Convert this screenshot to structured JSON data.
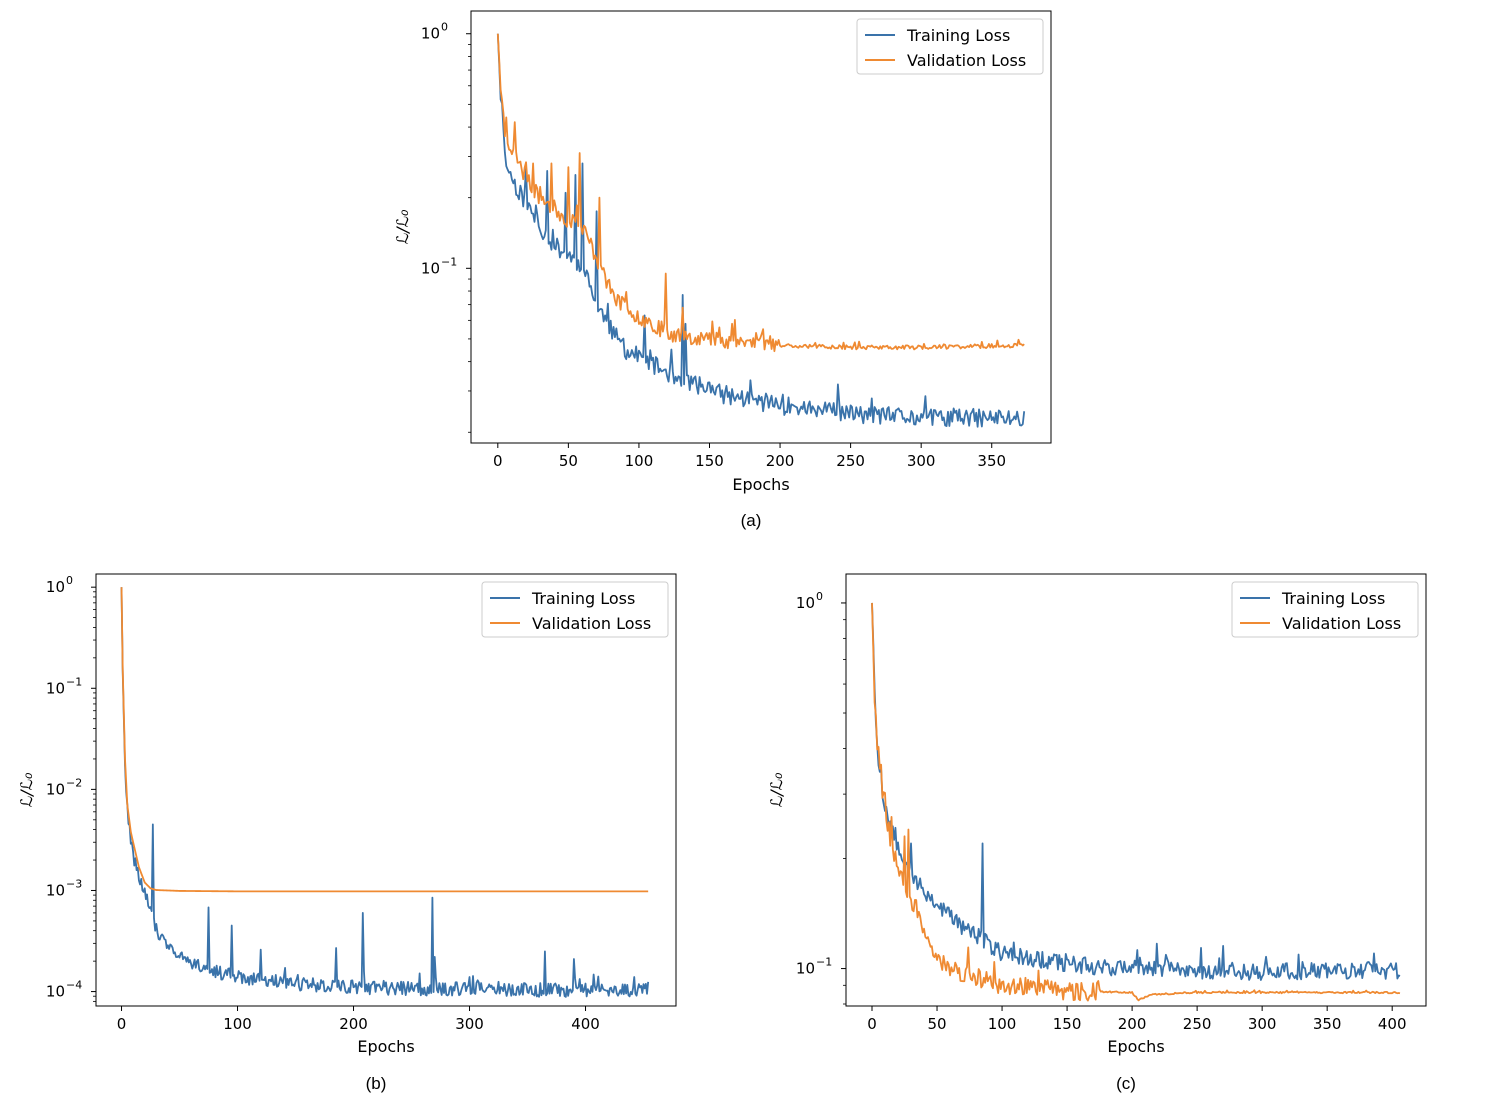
{
  "colors": {
    "training": "#3a73aa",
    "validation": "#ef8a32",
    "frame": "#000000",
    "legend_border": "#cccccc"
  },
  "chart_data": [
    {
      "id": "a",
      "type": "line",
      "caption": "(a)",
      "xlabel": "Epochs",
      "ylabel": "ℒ/ℒ₀",
      "yscale": "log",
      "xlim": [
        -19,
        392
      ],
      "ylim": [
        0.018,
        1.25
      ],
      "xticks": [
        0,
        50,
        100,
        150,
        200,
        250,
        300,
        350
      ],
      "xtick_labels": [
        "0",
        "50",
        "100",
        "150",
        "200",
        "250",
        "300",
        "350"
      ],
      "yticks": [
        {
          "value": 1,
          "exp": "0"
        },
        {
          "value": 0.1,
          "exp": "−1"
        }
      ],
      "legend_position": "upper-right",
      "series": [
        {
          "name": "Training Loss",
          "color_key": "training",
          "epochs": 374,
          "keypoints": [
            [
              0,
              1.0
            ],
            [
              2,
              0.55
            ],
            [
              5,
              0.3
            ],
            [
              10,
              0.24
            ],
            [
              20,
              0.19
            ],
            [
              30,
              0.15
            ],
            [
              40,
              0.125
            ],
            [
              50,
              0.115
            ],
            [
              60,
              0.1
            ],
            [
              65,
              0.085
            ],
            [
              70,
              0.07
            ],
            [
              80,
              0.055
            ],
            [
              90,
              0.045
            ],
            [
              100,
              0.042
            ],
            [
              120,
              0.036
            ],
            [
              140,
              0.032
            ],
            [
              160,
              0.029
            ],
            [
              200,
              0.026
            ],
            [
              250,
              0.024
            ],
            [
              300,
              0.023
            ],
            [
              374,
              0.023
            ]
          ],
          "noise": 0.09,
          "spikes": [
            [
              20,
              0.27
            ],
            [
              35,
              0.26
            ],
            [
              48,
              0.21
            ],
            [
              55,
              0.25
            ],
            [
              60,
              0.28
            ],
            [
              70,
              0.175
            ],
            [
              104,
              0.063
            ],
            [
              131,
              0.077
            ],
            [
              133,
              0.058
            ]
          ],
          "seed": 11
        },
        {
          "name": "Validation Loss",
          "color_key": "validation",
          "epochs": 374,
          "keypoints": [
            [
              0,
              1.0
            ],
            [
              2,
              0.6
            ],
            [
              5,
              0.38
            ],
            [
              10,
              0.32
            ],
            [
              20,
              0.24
            ],
            [
              30,
              0.2
            ],
            [
              40,
              0.18
            ],
            [
              50,
              0.16
            ],
            [
              60,
              0.15
            ],
            [
              65,
              0.13
            ],
            [
              70,
              0.11
            ],
            [
              80,
              0.08
            ],
            [
              90,
              0.068
            ],
            [
              100,
              0.062
            ],
            [
              110,
              0.058
            ],
            [
              120,
              0.053
            ],
            [
              150,
              0.05
            ],
            [
              200,
              0.047
            ],
            [
              250,
              0.046
            ],
            [
              300,
              0.046
            ],
            [
              374,
              0.047
            ]
          ],
          "noise": 0.08,
          "spikes": [
            [
              6,
              0.44
            ],
            [
              12,
              0.42
            ],
            [
              25,
              0.28
            ],
            [
              38,
              0.28
            ],
            [
              50,
              0.27
            ],
            [
              58,
              0.31
            ],
            [
              72,
              0.2
            ],
            [
              119,
              0.095
            ],
            [
              131,
              0.068
            ],
            [
              166,
              0.058
            ],
            [
              188,
              0.055
            ]
          ],
          "smooth_after": 200,
          "seed": 23
        }
      ]
    },
    {
      "id": "b",
      "type": "line",
      "caption": "(b)",
      "xlabel": "Epochs",
      "ylabel": "ℒ/ℒ₀",
      "yscale": "log",
      "xlim": [
        -22,
        478
      ],
      "ylim": [
        7.2e-05,
        1.35
      ],
      "xticks": [
        0,
        100,
        200,
        300,
        400
      ],
      "xtick_labels": [
        "0",
        "100",
        "200",
        "300",
        "400"
      ],
      "yticks": [
        {
          "value": 1,
          "exp": "0"
        },
        {
          "value": 0.1,
          "exp": "−1"
        },
        {
          "value": 0.01,
          "exp": "−2"
        },
        {
          "value": 0.001,
          "exp": "−3"
        },
        {
          "value": 0.0001,
          "exp": "−4"
        }
      ],
      "legend_position": "upper-right",
      "series": [
        {
          "name": "Training Loss",
          "color_key": "training",
          "epochs": 455,
          "keypoints": [
            [
              0,
              1.0
            ],
            [
              1,
              0.15
            ],
            [
              3,
              0.02
            ],
            [
              5,
              0.006
            ],
            [
              8,
              0.003
            ],
            [
              10,
              0.0022
            ],
            [
              15,
              0.0013
            ],
            [
              20,
              0.001
            ],
            [
              25,
              0.0007
            ],
            [
              30,
              0.0004
            ],
            [
              40,
              0.00026
            ],
            [
              60,
              0.0002
            ],
            [
              80,
              0.00016
            ],
            [
              100,
              0.00014
            ],
            [
              150,
              0.00012
            ],
            [
              200,
              0.00011
            ],
            [
              300,
              0.000105
            ],
            [
              455,
              0.000102
            ]
          ],
          "noise": 0.16,
          "spikes": [
            [
              27,
              0.0045
            ],
            [
              29,
              0.0004
            ],
            [
              75,
              0.00068
            ],
            [
              95,
              0.00045
            ],
            [
              120,
              0.00026
            ],
            [
              185,
              0.00027
            ],
            [
              208,
              0.0006
            ],
            [
              268,
              0.00085
            ],
            [
              270,
              0.00022
            ],
            [
              365,
              0.00025
            ],
            [
              390,
              0.00021
            ]
          ],
          "seed": 31
        },
        {
          "name": "Validation Loss",
          "color_key": "validation",
          "epochs": 455,
          "keypoints": [
            [
              0,
              1.0
            ],
            [
              1,
              0.16
            ],
            [
              3,
              0.02
            ],
            [
              5,
              0.007
            ],
            [
              8,
              0.0038
            ],
            [
              10,
              0.003
            ],
            [
              15,
              0.0017
            ],
            [
              20,
              0.0012
            ],
            [
              25,
              0.00105
            ],
            [
              30,
              0.00101
            ],
            [
              50,
              0.00099
            ],
            [
              100,
              0.00098
            ],
            [
              455,
              0.00098
            ]
          ],
          "noise": 0.0,
          "spikes": [],
          "seed": 41
        }
      ]
    },
    {
      "id": "c",
      "type": "line",
      "caption": "(c)",
      "xlabel": "Epochs",
      "ylabel": "ℒ/ℒ₀",
      "yscale": "log",
      "xlim": [
        -20,
        426
      ],
      "ylim": [
        0.079,
        1.2
      ],
      "xticks": [
        0,
        50,
        100,
        150,
        200,
        250,
        300,
        350,
        400
      ],
      "xtick_labels": [
        "0",
        "50",
        "100",
        "150",
        "200",
        "250",
        "300",
        "350",
        "400"
      ],
      "yticks": [
        {
          "value": 1,
          "exp": "0"
        },
        {
          "value": 0.1,
          "exp": "−1"
        }
      ],
      "legend_position": "upper-right",
      "series": [
        {
          "name": "Training Loss",
          "color_key": "training",
          "epochs": 407,
          "keypoints": [
            [
              0,
              1.0
            ],
            [
              2,
              0.6
            ],
            [
              4,
              0.4
            ],
            [
              8,
              0.3
            ],
            [
              15,
              0.24
            ],
            [
              25,
              0.2
            ],
            [
              35,
              0.17
            ],
            [
              50,
              0.15
            ],
            [
              60,
              0.14
            ],
            [
              70,
              0.13
            ],
            [
              85,
              0.12
            ],
            [
              100,
              0.11
            ],
            [
              150,
              0.103
            ],
            [
              200,
              0.1
            ],
            [
              300,
              0.098
            ],
            [
              407,
              0.099
            ]
          ],
          "noise": 0.055,
          "spikes": [
            [
              85,
              0.22
            ],
            [
              30,
              0.22
            ]
          ],
          "seed": 53
        },
        {
          "name": "Validation Loss",
          "color_key": "validation",
          "epochs": 407,
          "keypoints": [
            [
              0,
              1.0
            ],
            [
              2,
              0.55
            ],
            [
              4,
              0.42
            ],
            [
              8,
              0.3
            ],
            [
              15,
              0.22
            ],
            [
              25,
              0.17
            ],
            [
              35,
              0.14
            ],
            [
              45,
              0.11
            ],
            [
              60,
              0.1
            ],
            [
              80,
              0.095
            ],
            [
              100,
              0.09
            ],
            [
              150,
              0.087
            ],
            [
              200,
              0.086
            ],
            [
              205,
              0.082
            ],
            [
              215,
              0.085
            ],
            [
              250,
              0.086
            ],
            [
              407,
              0.086
            ]
          ],
          "noise": 0.06,
          "noise_until": 175,
          "spikes": [
            [
              15,
              0.26
            ],
            [
              25,
              0.23
            ],
            [
              28,
              0.24
            ]
          ],
          "seed": 67
        }
      ]
    }
  ]
}
